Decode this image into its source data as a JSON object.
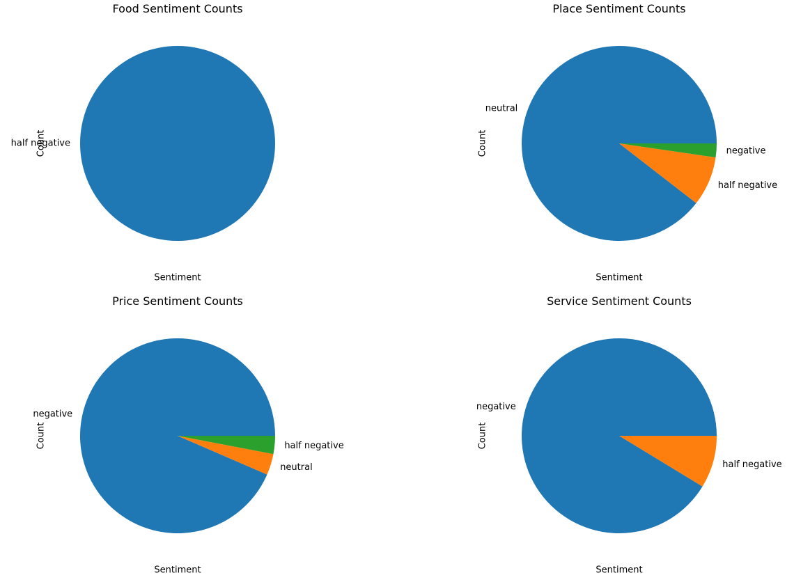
{
  "chart_data": [
    {
      "type": "pie",
      "title": "Food Sentiment Counts",
      "xlabel": "Sentiment",
      "ylabel": "Count",
      "slices": [
        {
          "label": "half negative",
          "value": 100,
          "color": "#1f77b4"
        }
      ]
    },
    {
      "type": "pie",
      "title": "Place Sentiment Counts",
      "xlabel": "Sentiment",
      "ylabel": "Count",
      "slices": [
        {
          "label": "neutral",
          "value": 89.5,
          "color": "#1f77b4"
        },
        {
          "label": "half negative",
          "value": 8.2,
          "color": "#ff7f0e"
        },
        {
          "label": "negative",
          "value": 2.3,
          "color": "#2ca02c"
        }
      ]
    },
    {
      "type": "pie",
      "title": "Price Sentiment Counts",
      "xlabel": "Sentiment",
      "ylabel": "Count",
      "slices": [
        {
          "label": "negative",
          "value": 93.5,
          "color": "#1f77b4"
        },
        {
          "label": "neutral",
          "value": 3.5,
          "color": "#ff7f0e"
        },
        {
          "label": "half negative",
          "value": 3.0,
          "color": "#2ca02c"
        }
      ]
    },
    {
      "type": "pie",
      "title": "Service Sentiment Counts",
      "xlabel": "Sentiment",
      "ylabel": "Count",
      "slices": [
        {
          "label": "negative",
          "value": 91.3,
          "color": "#1f77b4"
        },
        {
          "label": "half negative",
          "value": 8.7,
          "color": "#ff7f0e"
        }
      ]
    }
  ]
}
